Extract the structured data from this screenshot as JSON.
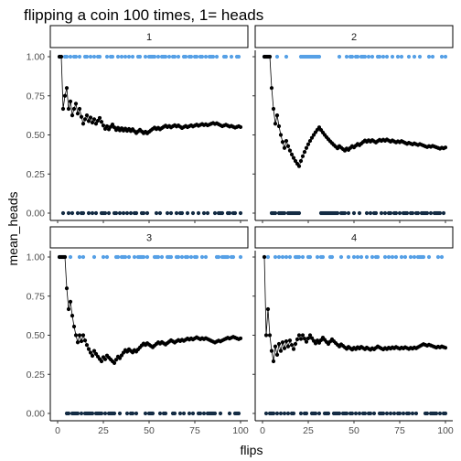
{
  "chart_data": {
    "type": "scatter",
    "title": "flipping a coin 100 times, 1= heads",
    "xlabel": "flips",
    "ylabel": "mean_heads",
    "xlim": [
      0,
      100
    ],
    "ylim": [
      0,
      1
    ],
    "x_ticks": [
      0,
      25,
      50,
      75,
      100
    ],
    "y_ticks": [
      0,
      0.25,
      0.5,
      0.75,
      1
    ],
    "x_tick_labels": [
      "0",
      "25",
      "50",
      "75",
      "100"
    ],
    "y_tick_labels": [
      "0.00",
      "0.25",
      "0.50",
      "0.75",
      "1.00"
    ],
    "grid": false,
    "colors": {
      "heads": "#56a0e6",
      "tails": "#132b43",
      "mean": "#000000"
    },
    "panels": [
      {
        "label": "1",
        "flips": [
          1,
          1,
          0,
          1,
          1,
          0,
          1,
          0,
          1,
          1,
          0,
          1,
          0,
          0,
          1,
          1,
          0,
          1,
          0,
          1,
          0,
          1,
          1,
          0,
          0,
          0,
          1,
          0,
          1,
          1,
          0,
          0,
          1,
          0,
          1,
          0,
          1,
          0,
          1,
          0,
          1,
          0,
          0,
          1,
          1,
          0,
          0,
          1,
          0,
          1,
          1,
          1,
          1,
          0,
          1,
          0,
          1,
          1,
          1,
          0,
          1,
          0,
          1,
          1,
          0,
          1,
          0,
          0,
          1,
          1,
          0,
          1,
          1,
          0,
          1,
          1,
          0,
          1,
          1,
          0,
          1,
          0,
          1,
          1,
          1,
          0,
          1,
          0,
          0,
          0,
          1,
          1,
          0,
          0,
          1,
          0,
          0,
          1,
          1,
          0
        ]
      },
      {
        "label": "2",
        "flips": [
          1,
          1,
          1,
          1,
          0,
          0,
          0,
          1,
          0,
          0,
          0,
          0,
          1,
          0,
          0,
          0,
          0,
          0,
          0,
          0,
          1,
          1,
          1,
          1,
          1,
          1,
          1,
          1,
          1,
          1,
          1,
          0,
          0,
          0,
          0,
          0,
          0,
          0,
          0,
          0,
          0,
          1,
          0,
          0,
          0,
          1,
          0,
          1,
          1,
          0,
          1,
          1,
          0,
          1,
          1,
          1,
          0,
          1,
          0,
          1,
          0,
          0,
          1,
          1,
          0,
          1,
          0,
          1,
          0,
          0,
          1,
          0,
          0,
          1,
          0,
          1,
          0,
          0,
          0,
          1,
          0,
          0,
          1,
          0,
          0,
          1,
          0,
          0,
          0,
          0,
          1,
          0,
          1,
          0,
          0,
          0,
          0,
          1,
          0,
          1
        ]
      },
      {
        "label": "3",
        "flips": [
          1,
          1,
          1,
          1,
          0,
          0,
          1,
          0,
          0,
          0,
          0,
          1,
          0,
          1,
          0,
          0,
          0,
          0,
          0,
          1,
          0,
          0,
          0,
          0,
          1,
          0,
          1,
          0,
          0,
          0,
          0,
          1,
          1,
          0,
          1,
          1,
          1,
          0,
          1,
          0,
          0,
          1,
          0,
          1,
          1,
          1,
          1,
          0,
          1,
          0,
          0,
          0,
          1,
          1,
          1,
          0,
          1,
          0,
          0,
          1,
          1,
          1,
          0,
          0,
          1,
          1,
          0,
          1,
          0,
          1,
          1,
          0,
          1,
          0,
          1,
          1,
          0,
          0,
          1,
          0,
          1,
          0,
          0,
          0,
          0,
          0,
          1,
          1,
          0,
          1,
          1,
          1,
          1,
          0,
          1,
          1,
          0,
          0,
          0,
          1
        ]
      },
      {
        "label": "4",
        "flips": [
          1,
          0,
          1,
          0,
          0,
          0,
          1,
          0,
          1,
          0,
          1,
          0,
          1,
          0,
          1,
          0,
          0,
          1,
          1,
          1,
          0,
          1,
          0,
          0,
          1,
          1,
          0,
          0,
          0,
          1,
          0,
          1,
          1,
          0,
          0,
          0,
          1,
          1,
          0,
          0,
          0,
          0,
          1,
          0,
          0,
          0,
          1,
          0,
          0,
          1,
          0,
          1,
          0,
          1,
          0,
          0,
          1,
          0,
          0,
          1,
          0,
          1,
          1,
          0,
          0,
          0,
          1,
          0,
          1,
          0,
          1,
          0,
          1,
          0,
          0,
          1,
          0,
          1,
          0,
          0,
          1,
          0,
          1,
          0,
          1,
          1,
          1,
          1,
          0,
          0,
          1,
          0,
          0,
          0,
          0,
          1,
          0,
          1,
          0,
          0
        ]
      }
    ]
  }
}
